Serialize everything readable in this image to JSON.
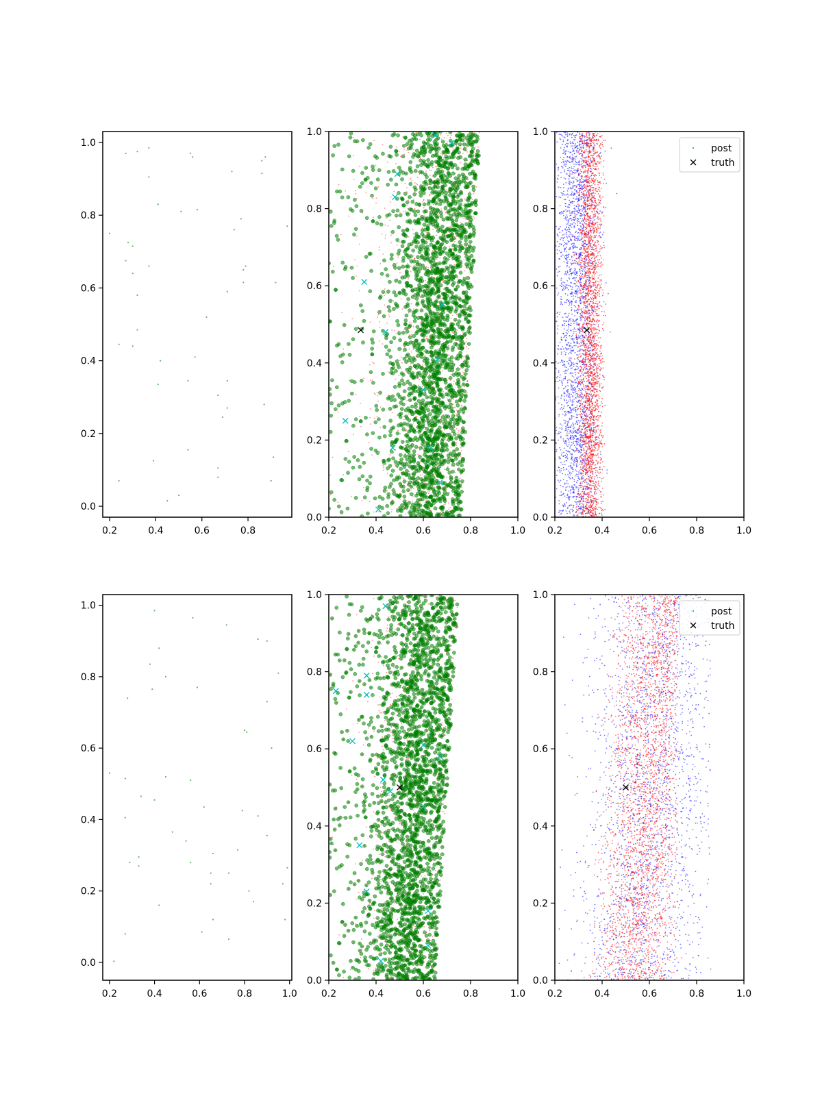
{
  "figure": {
    "background": "#ffffff"
  },
  "colors": {
    "green": "#008000",
    "red": "#ff0000",
    "blue": "#0000ff",
    "cyan": "#00bfbf",
    "black": "#000000"
  },
  "legend": {
    "post_label": "post",
    "truth_label": "truth"
  },
  "chart_data": [
    {
      "type": "scatter",
      "xlim": [
        0.17,
        0.99
      ],
      "ylim": [
        -0.03,
        1.03
      ],
      "xticks": [
        0.2,
        0.4,
        0.6,
        0.8
      ],
      "yticks": [
        0.0,
        0.2,
        0.4,
        0.6,
        0.8,
        1.0
      ],
      "xtick_labels": [
        "0.2",
        "0.4",
        "0.6",
        "0.8"
      ],
      "ytick_labels": [
        "0.0",
        "0.2",
        "0.4",
        "0.6",
        "0.8",
        "1.0"
      ],
      "grid": false,
      "legend": false,
      "series": [
        {
          "points": [
            [
              0.27,
              0.97
            ],
            [
              0.32,
              0.975
            ],
            [
              0.37,
              0.985
            ],
            [
              0.55,
              0.97
            ],
            [
              0.56,
              0.96
            ],
            [
              0.86,
              0.95
            ],
            [
              0.875,
              0.96
            ],
            [
              0.73,
              0.92
            ],
            [
              0.86,
              0.915
            ],
            [
              0.37,
              0.905
            ],
            [
              0.41,
              0.83
            ],
            [
              0.51,
              0.81
            ],
            [
              0.58,
              0.815
            ],
            [
              0.77,
              0.79
            ],
            [
              0.74,
              0.76
            ],
            [
              0.97,
              0.77
            ],
            [
              0.2,
              0.75
            ],
            [
              0.28,
              0.725
            ],
            [
              0.3,
              0.715
            ],
            [
              0.27,
              0.675
            ],
            [
              0.37,
              0.66
            ],
            [
              0.79,
              0.66
            ],
            [
              0.78,
              0.65
            ],
            [
              0.3,
              0.64
            ],
            [
              0.78,
              0.615
            ],
            [
              0.92,
              0.615
            ],
            [
              0.32,
              0.58
            ],
            [
              0.71,
              0.59
            ],
            [
              0.62,
              0.52
            ],
            [
              0.32,
              0.485
            ],
            [
              0.24,
              0.445
            ],
            [
              0.3,
              0.44
            ],
            [
              0.57,
              0.41
            ],
            [
              0.42,
              0.4
            ],
            [
              0.71,
              0.345
            ],
            [
              0.41,
              0.335
            ],
            [
              0.54,
              0.345
            ],
            [
              0.67,
              0.305
            ],
            [
              0.71,
              0.27
            ],
            [
              0.87,
              0.28
            ],
            [
              0.69,
              0.245
            ],
            [
              0.54,
              0.155
            ],
            [
              0.39,
              0.125
            ],
            [
              0.67,
              0.105
            ],
            [
              0.91,
              0.135
            ],
            [
              0.67,
              0.08
            ],
            [
              0.24,
              0.07
            ],
            [
              0.9,
              0.07
            ],
            [
              0.5,
              0.03
            ],
            [
              0.45,
              0.015
            ]
          ]
        }
      ]
    },
    {
      "type": "scatter",
      "xlim": [
        0.2,
        1.0
      ],
      "ylim": [
        0.0,
        1.0
      ],
      "xticks": [
        0.2,
        0.4,
        0.6,
        0.8,
        1.0
      ],
      "yticks": [
        0.0,
        0.2,
        0.4,
        0.6,
        0.8,
        1.0
      ],
      "xtick_labels": [
        "0.2",
        "0.4",
        "0.6",
        "0.8",
        "1.0"
      ],
      "ytick_labels": [
        "0.0",
        "0.2",
        "0.4",
        "0.6",
        "0.8",
        "1.0"
      ],
      "grid": false,
      "legend": false,
      "series": [
        {
          "marker": "x",
          "color": "cyan",
          "points": [
            [
              0.35,
              0.61
            ],
            [
              0.44,
              0.48
            ],
            [
              0.48,
              0.83
            ],
            [
              0.49,
              0.89
            ],
            [
              0.27,
              0.25
            ],
            [
              0.41,
              0.02
            ],
            [
              0.47,
              0.18
            ],
            [
              0.66,
              0.41
            ],
            [
              0.63,
              0.18
            ],
            [
              0.67,
              0.09
            ],
            [
              0.6,
              0.33
            ],
            [
              0.72,
              0.97
            ],
            [
              0.65,
              0.99
            ],
            [
              0.68,
              0.55
            ]
          ]
        },
        {
          "marker": "x",
          "color": "black",
          "points": [
            [
              0.335,
              0.485
            ]
          ]
        }
      ],
      "note_scatter": "dense cloud of green circles (sample) overlaid with small red dots, mass concentrated around x 0.55-0.8 spanning y 0-1"
    },
    {
      "type": "scatter",
      "xlim": [
        0.2,
        1.0
      ],
      "ylim": [
        0.0,
        1.0
      ],
      "xticks": [
        0.2,
        0.4,
        0.6,
        0.8,
        1.0
      ],
      "yticks": [
        0.0,
        0.2,
        0.4,
        0.6,
        0.8,
        1.0
      ],
      "xtick_labels": [
        "0.2",
        "0.4",
        "0.6",
        "0.8",
        "1.0"
      ],
      "ytick_labels": [
        "0.0",
        "0.2",
        "0.4",
        "0.6",
        "0.8",
        "1.0"
      ],
      "grid": false,
      "legend": true,
      "legend_loc": "upper right",
      "series": [
        {
          "name": "post",
          "marker": ".",
          "color": "cyan"
        },
        {
          "name": "truth",
          "marker": "x",
          "color": "black",
          "points": [
            [
              0.335,
              0.485
            ]
          ]
        }
      ],
      "note_scatter": "narrow vertical band of blue and red dots between x 0.2 and 0.42"
    },
    {
      "type": "scatter",
      "xlim": [
        0.17,
        1.01
      ],
      "ylim": [
        -0.05,
        1.03
      ],
      "xticks": [
        0.2,
        0.4,
        0.6,
        0.8,
        1.0
      ],
      "yticks": [
        0.0,
        0.2,
        0.4,
        0.6,
        0.8,
        1.0
      ],
      "xtick_labels": [
        "0.2",
        "0.4",
        "0.6",
        "0.8",
        "1.0"
      ],
      "ytick_labels": [
        "0.0",
        "0.2",
        "0.4",
        "0.6",
        "0.8",
        "1.0"
      ],
      "grid": false,
      "legend": false,
      "series": [
        {
          "points": [
            [
              0.4,
              0.985
            ],
            [
              0.57,
              0.965
            ],
            [
              0.72,
              0.945
            ],
            [
              0.86,
              0.905
            ],
            [
              0.9,
              0.9
            ],
            [
              0.42,
              0.88
            ],
            [
              0.38,
              0.835
            ],
            [
              0.45,
              0.8
            ],
            [
              0.95,
              0.81
            ],
            [
              0.39,
              0.765
            ],
            [
              0.59,
              0.77
            ],
            [
              0.28,
              0.74
            ],
            [
              0.9,
              0.73
            ],
            [
              0.8,
              0.65
            ],
            [
              0.81,
              0.645
            ],
            [
              0.92,
              0.6
            ],
            [
              0.2,
              0.53
            ],
            [
              0.27,
              0.515
            ],
            [
              0.45,
              0.52
            ],
            [
              0.56,
              0.51
            ],
            [
              0.34,
              0.465
            ],
            [
              0.4,
              0.455
            ],
            [
              0.62,
              0.435
            ],
            [
              0.79,
              0.425
            ],
            [
              0.86,
              0.41
            ],
            [
              0.27,
              0.405
            ],
            [
              0.48,
              0.365
            ],
            [
              0.54,
              0.34
            ],
            [
              0.9,
              0.355
            ],
            [
              0.33,
              0.295
            ],
            [
              0.66,
              0.305
            ],
            [
              0.77,
              0.315
            ],
            [
              0.29,
              0.28
            ],
            [
              0.33,
              0.27
            ],
            [
              0.56,
              0.28
            ],
            [
              0.65,
              0.25
            ],
            [
              0.73,
              0.25
            ],
            [
              0.99,
              0.265
            ],
            [
              0.65,
              0.22
            ],
            [
              0.97,
              0.22
            ],
            [
              0.82,
              0.2
            ],
            [
              0.84,
              0.17
            ],
            [
              0.42,
              0.16
            ],
            [
              0.66,
              0.12
            ],
            [
              0.98,
              0.12
            ],
            [
              0.61,
              0.085
            ],
            [
              0.27,
              0.08
            ],
            [
              0.73,
              0.065
            ],
            [
              0.22,
              0.003
            ]
          ]
        }
      ]
    },
    {
      "type": "scatter",
      "xlim": [
        0.2,
        1.0
      ],
      "ylim": [
        0.0,
        1.0
      ],
      "xticks": [
        0.2,
        0.4,
        0.6,
        0.8,
        1.0
      ],
      "yticks": [
        0.0,
        0.2,
        0.4,
        0.6,
        0.8,
        1.0
      ],
      "xtick_labels": [
        "0.2",
        "0.4",
        "0.6",
        "0.8",
        "1.0"
      ],
      "ytick_labels": [
        "0.0",
        "0.2",
        "0.4",
        "0.6",
        "0.8",
        "1.0"
      ],
      "grid": false,
      "legend": false,
      "series": [
        {
          "marker": "x",
          "color": "cyan",
          "points": [
            [
              0.23,
              0.75
            ],
            [
              0.36,
              0.79
            ],
            [
              0.36,
              0.74
            ],
            [
              0.44,
              0.97
            ],
            [
              0.43,
              0.52
            ],
            [
              0.46,
              0.49
            ],
            [
              0.36,
              0.23
            ],
            [
              0.42,
              0.05
            ],
            [
              0.33,
              0.35
            ],
            [
              0.62,
              0.09
            ],
            [
              0.62,
              0.18
            ],
            [
              0.6,
              0.45
            ],
            [
              0.6,
              0.61
            ],
            [
              0.67,
              0.58
            ],
            [
              0.3,
              0.62
            ]
          ]
        },
        {
          "marker": "x",
          "color": "black",
          "points": [
            [
              0.5,
              0.5
            ]
          ]
        }
      ],
      "note_scatter": "dense cloud of green circles overlaid with small red dots, mass around x 0.45-0.7 spanning y 0-1"
    },
    {
      "type": "scatter",
      "xlim": [
        0.2,
        1.0
      ],
      "ylim": [
        0.0,
        1.0
      ],
      "xticks": [
        0.2,
        0.4,
        0.6,
        0.8,
        1.0
      ],
      "yticks": [
        0.0,
        0.2,
        0.4,
        0.6,
        0.8,
        1.0
      ],
      "xtick_labels": [
        "0.2",
        "0.4",
        "0.6",
        "0.8",
        "1.0"
      ],
      "ytick_labels": [
        "0.0",
        "0.2",
        "0.4",
        "0.6",
        "0.8",
        "1.0"
      ],
      "grid": false,
      "legend": true,
      "legend_loc": "upper right",
      "series": [
        {
          "name": "post",
          "marker": ".",
          "color": "cyan"
        },
        {
          "name": "truth",
          "marker": "x",
          "color": "black",
          "points": [
            [
              0.5,
              0.5
            ]
          ]
        }
      ],
      "note_scatter": "broad cloud: red dots concentrated around x 0.45-0.7, blue dots spread x 0.2-0.85"
    }
  ]
}
